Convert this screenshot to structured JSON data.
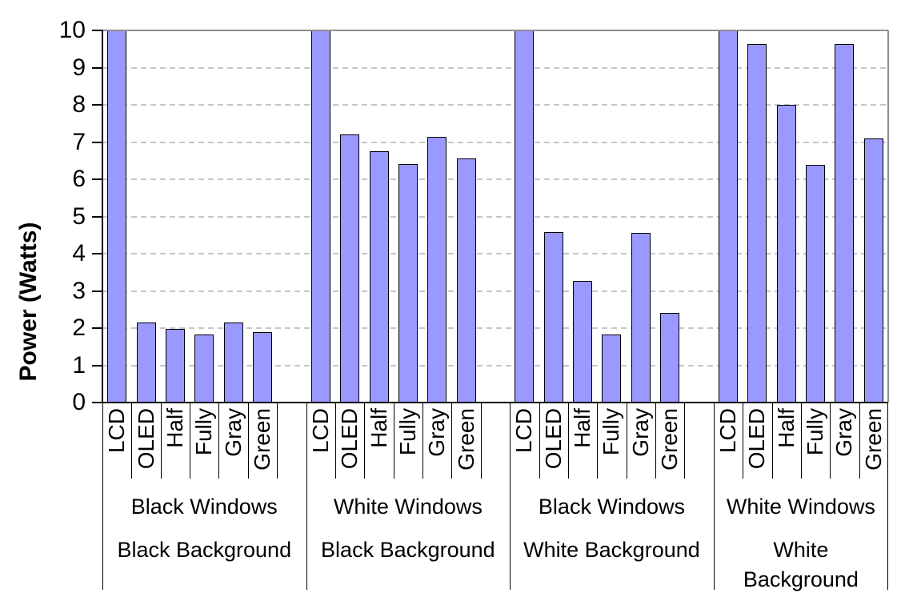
{
  "chart_data": {
    "type": "bar",
    "title": "",
    "ylabel": "Power (Watts)",
    "xlabel": "",
    "ylim": [
      0,
      10
    ],
    "yticks": [
      0,
      1,
      2,
      3,
      4,
      5,
      6,
      7,
      8,
      9,
      10
    ],
    "grid": "horizontal-dashed",
    "legend": "none",
    "bar_categories": [
      "LCD",
      "OLED",
      "Half",
      "Fully",
      "Gray",
      "Green"
    ],
    "groups": [
      {
        "windows_label": "Black Windows",
        "background_label_lines": [
          "Black Background"
        ],
        "values": [
          10,
          2.15,
          1.98,
          1.83,
          2.15,
          1.9
        ]
      },
      {
        "windows_label": "White Windows",
        "background_label_lines": [
          "Black Background"
        ],
        "values": [
          10,
          7.2,
          6.75,
          6.4,
          7.13,
          6.55
        ]
      },
      {
        "windows_label": "Black Windows",
        "background_label_lines": [
          "White Background"
        ],
        "values": [
          10,
          4.58,
          3.27,
          1.83,
          4.55,
          2.4
        ]
      },
      {
        "windows_label": "White Windows",
        "background_label_lines": [
          "White",
          "Background"
        ],
        "values": [
          10,
          9.63,
          8.0,
          6.38,
          9.63,
          7.1
        ]
      }
    ],
    "colors": {
      "bar_fill": "#9999FF",
      "bar_border": "#000000",
      "gridline": "#c6c6c6",
      "plot_border": "#8f8f8f",
      "axis": "#000000",
      "background": "#FFFFFF"
    }
  }
}
